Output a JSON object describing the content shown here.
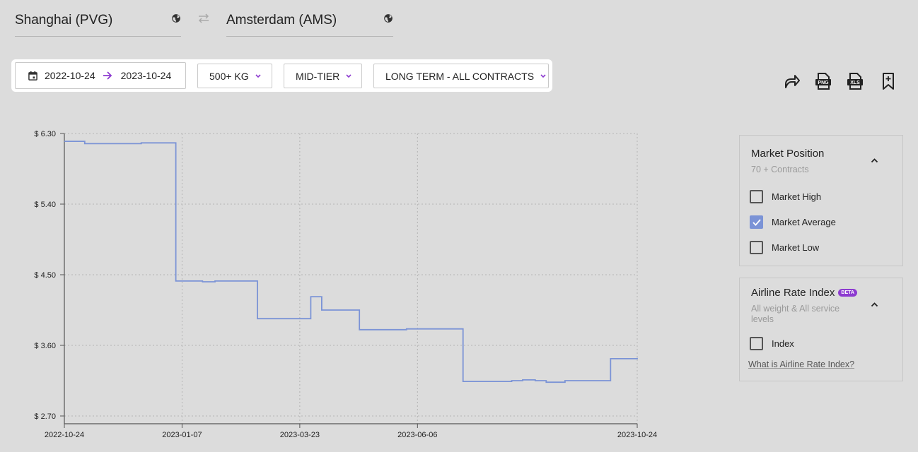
{
  "route": {
    "origin": "Shanghai (PVG)",
    "destination": "Amsterdam (AMS)"
  },
  "filters": {
    "date_from": "2022-10-24",
    "date_to": "2023-10-24",
    "weight": "500+ KG",
    "tier": "MID-TIER",
    "term": "LONG TERM - ALL CONTRACTS"
  },
  "toolbar": {
    "png": "PNG",
    "xls": "XLS"
  },
  "chart_data": {
    "type": "line",
    "title": "",
    "xlabel": "",
    "ylabel": "",
    "x_ticks": [
      "2022-10-24",
      "2023-01-07",
      "2023-03-23",
      "2023-06-06",
      "2023-10-24"
    ],
    "y_ticks": [
      "$ 6.30",
      "$ 5.40",
      "$ 4.50",
      "$ 3.60",
      "$ 2.70"
    ],
    "ylim": [
      2.7,
      6.3
    ],
    "xlim": [
      "2022-10-24",
      "2023-10-24"
    ],
    "grid": true,
    "step": true,
    "color": "#7b93d6",
    "series": [
      {
        "name": "",
        "points": [
          [
            "2022-10-24",
            6.2
          ],
          [
            "2022-11-06",
            6.17
          ],
          [
            "2022-12-12",
            6.18
          ],
          [
            "2023-01-03",
            4.42
          ],
          [
            "2023-01-20",
            4.41
          ],
          [
            "2023-01-28",
            4.42
          ],
          [
            "2023-02-24",
            3.94
          ],
          [
            "2023-03-30",
            4.22
          ],
          [
            "2023-04-06",
            4.05
          ],
          [
            "2023-04-30",
            3.8
          ],
          [
            "2023-05-30",
            3.81
          ],
          [
            "2023-07-05",
            3.14
          ],
          [
            "2023-08-05",
            3.15
          ],
          [
            "2023-08-12",
            3.16
          ],
          [
            "2023-08-20",
            3.15
          ],
          [
            "2023-08-27",
            3.13
          ],
          [
            "2023-09-08",
            3.15
          ],
          [
            "2023-10-07",
            3.43
          ],
          [
            "2023-10-24",
            3.44
          ]
        ]
      }
    ]
  },
  "market_panel": {
    "title": "Market Position",
    "subtitle": "70 + Contracts",
    "options": [
      {
        "label": "Market High",
        "checked": false
      },
      {
        "label": "Market Average",
        "checked": true
      },
      {
        "label": "Market Low",
        "checked": false
      }
    ]
  },
  "index_panel": {
    "title": "Airline Rate Index",
    "badge": "BETA",
    "subtitle": "All weight & All service levels",
    "option_label": "Index",
    "option_checked": false,
    "link": "What is Airline Rate Index?"
  }
}
